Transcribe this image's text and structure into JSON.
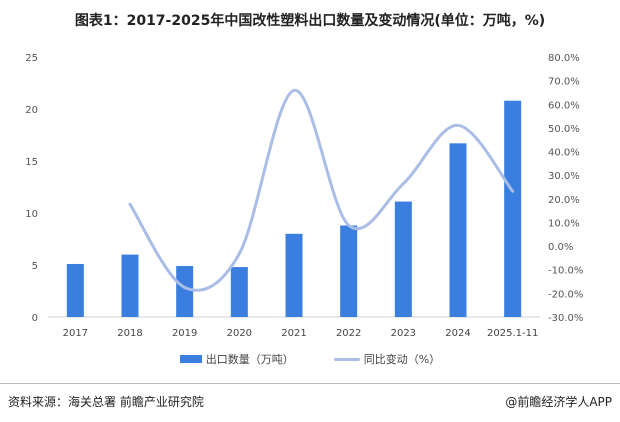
{
  "title": "图表1：2017-2025年中国改性塑料出口数量及变动情况(单位：万吨，%)",
  "chart_data": {
    "type": "bar+line",
    "categories": [
      "2017",
      "2018",
      "2019",
      "2020",
      "2021",
      "2022",
      "2023",
      "2024",
      "2025.1-11"
    ],
    "series": [
      {
        "name": "出口数量（万吨）",
        "type": "bar",
        "axis": "left",
        "color": "#3a7fe0",
        "values": [
          5.1,
          6.0,
          4.9,
          4.8,
          8.0,
          8.8,
          11.1,
          16.7,
          20.8
        ]
      },
      {
        "name": "同比变动（%）",
        "type": "line",
        "axis": "right",
        "color": "#a9bde6",
        "values": [
          null,
          17.7,
          -17.5,
          -3.2,
          65.9,
          8.8,
          26.4,
          51.1,
          23.2
        ]
      }
    ],
    "y_left": {
      "range": [
        0,
        25
      ],
      "ticks": [
        "0",
        "5",
        "10",
        "15",
        "20",
        "25"
      ]
    },
    "y_right": {
      "range": [
        -30,
        80
      ],
      "ticks": [
        "-30.0%",
        "-20.0%",
        "-10.0%",
        "0.0%",
        "10.0%",
        "20.0%",
        "30.0%",
        "40.0%",
        "50.0%",
        "60.0%",
        "70.0%",
        "80.0%"
      ]
    },
    "grid": false,
    "legend": "bottom"
  },
  "legend": {
    "bar": "出口数量（万吨）",
    "line": "同比变动（%）"
  },
  "source": "资料来源：海关总署 前瞻产业研究院",
  "brand": "@前瞻经济学人APP"
}
